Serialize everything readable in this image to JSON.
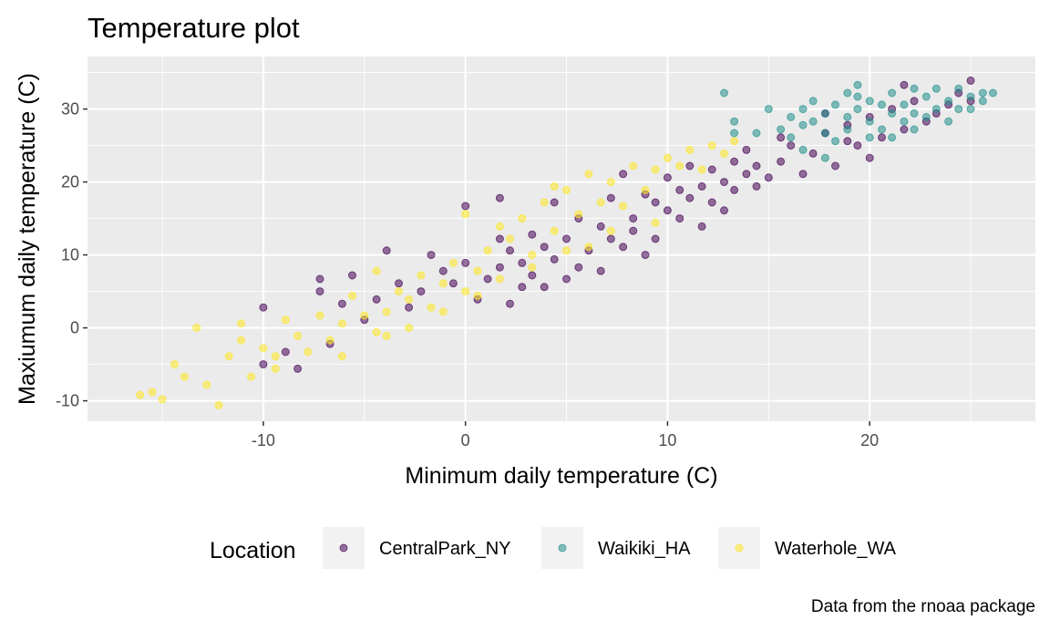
{
  "chart_data": {
    "type": "scatter",
    "title": "Temperature plot",
    "xlabel": "Minimum daily temperature (C)",
    "ylabel": "Maxiumum daily temperature (C)",
    "caption": "Data from the rnoaa package",
    "xlim": [
      -18.7,
      28.2
    ],
    "ylim": [
      -12.8,
      37.2
    ],
    "xticks": [
      -10,
      0,
      10,
      20
    ],
    "yticks": [
      -10,
      0,
      10,
      20,
      30
    ],
    "grid": true,
    "legend": {
      "title": "Location",
      "position": "bottom"
    },
    "series": [
      {
        "name": "CentralPark_NY",
        "color": "#440154",
        "points": [
          [
            -10.0,
            2.8
          ],
          [
            -10.0,
            -5.0
          ],
          [
            -8.9,
            -3.3
          ],
          [
            -8.3,
            -5.6
          ],
          [
            -7.2,
            6.7
          ],
          [
            -7.2,
            5.0
          ],
          [
            -6.7,
            -2.2
          ],
          [
            -6.1,
            3.3
          ],
          [
            -5.6,
            7.2
          ],
          [
            -5.0,
            1.1
          ],
          [
            -4.4,
            3.9
          ],
          [
            -3.9,
            10.6
          ],
          [
            -3.3,
            6.1
          ],
          [
            -2.8,
            2.8
          ],
          [
            -2.2,
            5.0
          ],
          [
            -1.7,
            10.0
          ],
          [
            -1.1,
            7.8
          ],
          [
            -0.6,
            6.1
          ],
          [
            0.0,
            16.7
          ],
          [
            0.0,
            8.9
          ],
          [
            0.6,
            3.9
          ],
          [
            1.1,
            6.7
          ],
          [
            1.7,
            12.2
          ],
          [
            1.7,
            8.3
          ],
          [
            2.2,
            10.6
          ],
          [
            1.7,
            17.8
          ],
          [
            2.2,
            3.3
          ],
          [
            2.8,
            5.6
          ],
          [
            2.8,
            8.9
          ],
          [
            3.3,
            7.2
          ],
          [
            3.3,
            12.8
          ],
          [
            3.9,
            5.6
          ],
          [
            3.9,
            11.1
          ],
          [
            4.4,
            9.4
          ],
          [
            4.4,
            17.2
          ],
          [
            5.0,
            6.7
          ],
          [
            5.0,
            12.2
          ],
          [
            5.6,
            8.3
          ],
          [
            5.6,
            15.0
          ],
          [
            6.1,
            10.6
          ],
          [
            6.7,
            13.9
          ],
          [
            6.7,
            7.8
          ],
          [
            7.2,
            12.2
          ],
          [
            7.2,
            17.8
          ],
          [
            7.8,
            11.1
          ],
          [
            7.8,
            21.1
          ],
          [
            8.3,
            15.0
          ],
          [
            8.3,
            13.3
          ],
          [
            8.9,
            18.3
          ],
          [
            8.9,
            10.0
          ],
          [
            9.4,
            12.2
          ],
          [
            9.4,
            17.2
          ],
          [
            10.0,
            16.1
          ],
          [
            10.0,
            20.6
          ],
          [
            10.6,
            18.9
          ],
          [
            10.6,
            15.0
          ],
          [
            11.1,
            22.2
          ],
          [
            11.1,
            17.8
          ],
          [
            11.7,
            19.4
          ],
          [
            11.7,
            13.9
          ],
          [
            12.2,
            21.7
          ],
          [
            12.2,
            17.2
          ],
          [
            12.8,
            20.0
          ],
          [
            12.8,
            16.1
          ],
          [
            13.3,
            22.8
          ],
          [
            13.3,
            18.9
          ],
          [
            13.9,
            21.1
          ],
          [
            13.9,
            24.4
          ],
          [
            14.4,
            19.4
          ],
          [
            14.4,
            22.2
          ],
          [
            15.0,
            20.6
          ],
          [
            15.6,
            22.8
          ],
          [
            16.1,
            25.0
          ],
          [
            16.7,
            21.1
          ],
          [
            17.2,
            23.9
          ],
          [
            17.8,
            26.7
          ],
          [
            18.3,
            22.2
          ],
          [
            18.9,
            27.8
          ],
          [
            19.4,
            25.0
          ],
          [
            20.0,
            28.9
          ],
          [
            20.6,
            26.1
          ],
          [
            21.1,
            30.0
          ],
          [
            21.7,
            27.2
          ],
          [
            22.2,
            31.1
          ],
          [
            22.8,
            28.3
          ],
          [
            23.3,
            29.4
          ],
          [
            23.9,
            30.6
          ],
          [
            24.4,
            32.2
          ],
          [
            25.0,
            33.9
          ],
          [
            25.0,
            31.1
          ],
          [
            18.9,
            25.6
          ],
          [
            20.0,
            23.3
          ],
          [
            21.7,
            33.3
          ],
          [
            17.8,
            29.4
          ],
          [
            15.6,
            26.1
          ]
        ]
      },
      {
        "name": "Waikiki_HA",
        "color": "#21908C",
        "points": [
          [
            12.8,
            32.2
          ],
          [
            13.3,
            26.7
          ],
          [
            13.3,
            28.3
          ],
          [
            14.4,
            26.7
          ],
          [
            15.0,
            30.0
          ],
          [
            15.6,
            27.2
          ],
          [
            16.1,
            28.9
          ],
          [
            16.1,
            26.1
          ],
          [
            16.7,
            30.0
          ],
          [
            16.7,
            27.8
          ],
          [
            17.2,
            31.1
          ],
          [
            17.2,
            28.3
          ],
          [
            17.8,
            26.7
          ],
          [
            17.8,
            29.4
          ],
          [
            18.3,
            30.6
          ],
          [
            18.3,
            25.6
          ],
          [
            18.9,
            28.9
          ],
          [
            18.9,
            27.2
          ],
          [
            19.4,
            31.7
          ],
          [
            19.4,
            30.0
          ],
          [
            20.0,
            28.3
          ],
          [
            20.0,
            26.1
          ],
          [
            20.6,
            30.6
          ],
          [
            20.6,
            27.2
          ],
          [
            21.1,
            29.4
          ],
          [
            21.1,
            32.2
          ],
          [
            21.7,
            28.3
          ],
          [
            21.7,
            30.6
          ],
          [
            22.2,
            27.2
          ],
          [
            22.2,
            29.4
          ],
          [
            22.8,
            31.7
          ],
          [
            22.8,
            28.9
          ],
          [
            23.3,
            30.0
          ],
          [
            23.3,
            32.8
          ],
          [
            23.9,
            31.1
          ],
          [
            23.9,
            28.3
          ],
          [
            24.4,
            30.0
          ],
          [
            24.4,
            32.8
          ],
          [
            25.0,
            31.7
          ],
          [
            25.0,
            30.0
          ],
          [
            25.6,
            32.2
          ],
          [
            25.6,
            31.1
          ],
          [
            26.1,
            32.2
          ],
          [
            17.8,
            23.3
          ],
          [
            16.7,
            24.4
          ],
          [
            19.4,
            33.3
          ],
          [
            21.1,
            26.1
          ],
          [
            20.0,
            31.1
          ],
          [
            22.2,
            32.8
          ],
          [
            18.9,
            32.2
          ]
        ]
      },
      {
        "name": "Waterhole_WA",
        "color": "#FDE725",
        "points": [
          [
            -16.1,
            -9.2
          ],
          [
            -15.5,
            -8.8
          ],
          [
            -15.0,
            -9.8
          ],
          [
            -14.4,
            -5.0
          ],
          [
            -13.3,
            0.0
          ],
          [
            -12.8,
            -7.8
          ],
          [
            -12.2,
            -10.6
          ],
          [
            -11.7,
            -3.9
          ],
          [
            -11.1,
            -1.7
          ],
          [
            -10.6,
            -6.7
          ],
          [
            -10.0,
            -2.8
          ],
          [
            -9.4,
            -3.9
          ],
          [
            -8.9,
            1.1
          ],
          [
            -8.3,
            -1.1
          ],
          [
            -7.8,
            -3.3
          ],
          [
            -7.2,
            1.7
          ],
          [
            -6.7,
            -1.7
          ],
          [
            -6.1,
            0.6
          ],
          [
            -5.6,
            4.4
          ],
          [
            -5.0,
            1.7
          ],
          [
            -4.4,
            -0.6
          ],
          [
            -3.9,
            2.2
          ],
          [
            -3.3,
            5.0
          ],
          [
            -2.8,
            3.9
          ],
          [
            -2.2,
            7.2
          ],
          [
            -1.7,
            2.8
          ],
          [
            -1.1,
            6.1
          ],
          [
            -0.6,
            8.9
          ],
          [
            0.0,
            5.0
          ],
          [
            0.0,
            15.6
          ],
          [
            0.6,
            7.8
          ],
          [
            1.1,
            10.6
          ],
          [
            1.7,
            6.7
          ],
          [
            2.2,
            12.2
          ],
          [
            2.8,
            15.0
          ],
          [
            3.3,
            10.0
          ],
          [
            3.9,
            17.2
          ],
          [
            4.4,
            13.3
          ],
          [
            5.0,
            18.9
          ],
          [
            5.6,
            15.6
          ],
          [
            6.1,
            21.1
          ],
          [
            6.7,
            17.2
          ],
          [
            7.2,
            20.0
          ],
          [
            7.8,
            16.7
          ],
          [
            8.3,
            22.2
          ],
          [
            8.9,
            18.9
          ],
          [
            9.4,
            21.7
          ],
          [
            10.0,
            23.3
          ],
          [
            10.6,
            22.2
          ],
          [
            11.1,
            24.4
          ],
          [
            11.7,
            21.7
          ],
          [
            12.2,
            25.0
          ],
          [
            12.8,
            23.9
          ],
          [
            13.3,
            25.6
          ],
          [
            9.4,
            14.4
          ],
          [
            6.1,
            11.1
          ],
          [
            3.3,
            8.3
          ],
          [
            -4.4,
            7.8
          ],
          [
            -2.8,
            0.0
          ],
          [
            -1.1,
            2.2
          ],
          [
            0.6,
            4.4
          ],
          [
            1.7,
            13.9
          ],
          [
            4.4,
            19.4
          ],
          [
            7.2,
            13.3
          ],
          [
            -3.9,
            -1.1
          ],
          [
            -6.1,
            -3.9
          ],
          [
            -9.4,
            -5.6
          ],
          [
            -13.9,
            -6.7
          ],
          [
            -11.1,
            0.6
          ],
          [
            5.0,
            10.6
          ]
        ]
      }
    ]
  }
}
